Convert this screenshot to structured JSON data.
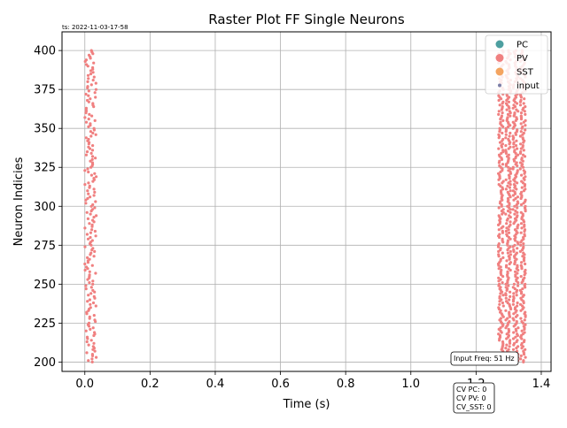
{
  "chart_data": {
    "type": "scatter",
    "title": "Raster Plot FF Single Neurons",
    "timestamp": "ts: 2022-11-03-17-58",
    "xlabel": "Time (s)",
    "ylabel": "Neuron Indicies",
    "xlim": [
      -0.07,
      1.43
    ],
    "ylim": [
      194,
      412
    ],
    "xticks": [
      0.0,
      0.2,
      0.4,
      0.6,
      0.8,
      1.0,
      1.2,
      1.4
    ],
    "xtick_labels": [
      "0.0",
      "0.2",
      "0.4",
      "0.6",
      "0.8",
      "1.0",
      "1.2",
      "1.4"
    ],
    "yticks": [
      200,
      225,
      250,
      275,
      300,
      325,
      350,
      375,
      400
    ],
    "ytick_labels": [
      "200",
      "225",
      "250",
      "275",
      "300",
      "325",
      "350",
      "375",
      "400"
    ],
    "grid": true,
    "legend_position": "top-right",
    "legend": [
      {
        "name": "PC",
        "color": "#4d9fa0",
        "marker": "large"
      },
      {
        "name": "PV",
        "color": "#f08080",
        "marker": "large"
      },
      {
        "name": "SST",
        "color": "#f4a460",
        "marker": "large"
      },
      {
        "name": "input",
        "color": "#7b7fa8",
        "marker": "small"
      }
    ],
    "series": [
      {
        "name": "PV",
        "color": "#f08080",
        "neuron_range": [
          200,
          400
        ],
        "bursts": [
          {
            "t_start": 0.0,
            "t_end": 0.035,
            "spikes_per_neuron": 1
          },
          {
            "t_start": 1.265,
            "t_end": 1.355,
            "spikes_per_neuron": 4
          }
        ]
      }
    ],
    "annotations": {
      "input_freq": "Input Freq: 51 Hz",
      "cv_lines": [
        "CV PC: 0",
        "CV PV: 0",
        "CV_SST: 0"
      ]
    }
  }
}
